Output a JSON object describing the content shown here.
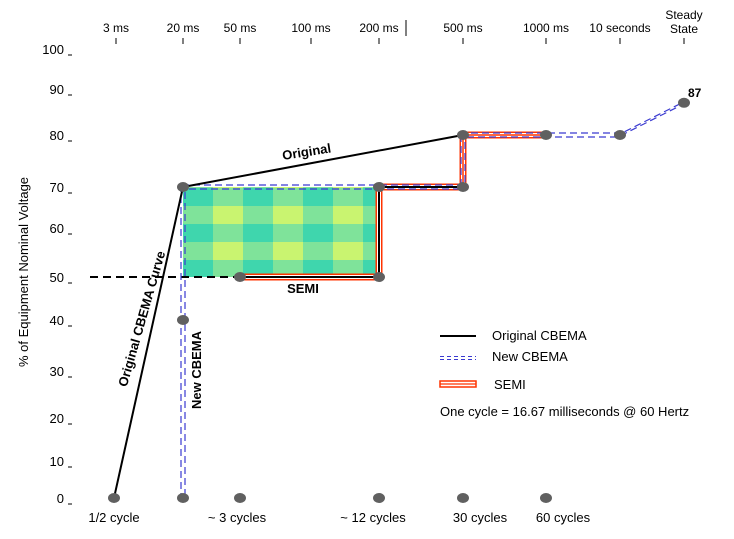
{
  "chart_data": {
    "type": "line",
    "ylabel": "% of Equipment Nominal Voltage",
    "y_ticks": [
      100,
      90,
      80,
      70,
      60,
      50,
      40,
      30,
      20,
      10,
      0
    ],
    "x_ticks_top": [
      {
        "label": "3 ms",
        "ms": 3
      },
      {
        "label": "20 ms",
        "ms": 20
      },
      {
        "label": "50 ms",
        "ms": 50
      },
      {
        "label": "100 ms",
        "ms": 100
      },
      {
        "label": "200 ms",
        "ms": 200
      },
      {
        "label": "500 ms",
        "ms": 500
      },
      {
        "label": "1000 ms",
        "ms": 1000
      },
      {
        "label": "10 seconds",
        "ms": 10000
      },
      {
        "label": "Steady State",
        "ms": "Steady State"
      }
    ],
    "x_ticks_bottom": [
      {
        "label": "1/2 cycle",
        "ms": 8.33
      },
      {
        "label": "~ 3 cycles",
        "ms": 50
      },
      {
        "label": "~ 12 cycles",
        "ms": 200
      },
      {
        "label": "30 cycles",
        "ms": 500
      },
      {
        "label": "60 cycles",
        "ms": 1000
      }
    ],
    "series": [
      {
        "name": "Original CBEMA",
        "color": "#000000",
        "style": "solid",
        "points": [
          [
            8.33,
            0
          ],
          [
            20,
            70
          ],
          [
            500,
            80
          ]
        ]
      },
      {
        "name": "New CBEMA",
        "color": "#3a3ad0",
        "style": "double-dashed",
        "points": [
          [
            20,
            0
          ],
          [
            20,
            70
          ],
          [
            500,
            70
          ],
          [
            500,
            80
          ],
          [
            10000,
            80
          ],
          [
            "Steady State",
            87
          ]
        ]
      },
      {
        "name": "SEMI",
        "color": "#ff3300",
        "style": "triple-red",
        "points": [
          [
            50,
            50
          ],
          [
            200,
            50
          ],
          [
            200,
            70
          ],
          [
            500,
            70
          ],
          [
            500,
            80
          ],
          [
            1000,
            80
          ]
        ]
      }
    ],
    "dashed_reference": {
      "y": 50,
      "to_ms": 50
    },
    "shaded_region": {
      "x": [
        20,
        200
      ],
      "y": [
        50,
        70
      ],
      "colors": [
        "#4fe0b0",
        "#c8f070"
      ]
    },
    "markers": [
      [
        8.33,
        0
      ],
      [
        20,
        0
      ],
      [
        50,
        0
      ],
      [
        200,
        0
      ],
      [
        500,
        0
      ],
      [
        1000,
        0
      ],
      [
        20,
        40
      ],
      [
        20,
        70
      ],
      [
        50,
        50
      ],
      [
        200,
        50
      ],
      [
        200,
        70
      ],
      [
        500,
        70
      ],
      [
        500,
        80
      ],
      [
        1000,
        80
      ],
      [
        10000,
        80
      ],
      [
        "Steady State",
        87
      ]
    ],
    "annotations": {
      "original": "Original",
      "original_curve": "Original CBEMA Curve",
      "new_cbema": "New CBEMA",
      "semi": "SEMI",
      "steady_value": "87",
      "note": "One cycle = 16.67 milliseconds @ 60 Hertz"
    },
    "legend": {
      "placement": "right-middle",
      "entries": [
        "Original CBEMA",
        "New CBEMA",
        "SEMI"
      ]
    },
    "grid": false
  }
}
